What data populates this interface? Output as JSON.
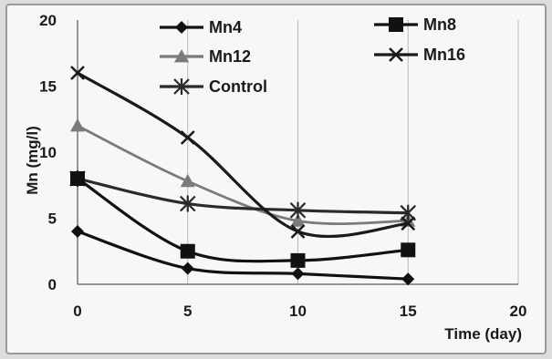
{
  "chart_data": {
    "type": "line",
    "xlabel": "Time (day)",
    "ylabel": "Mn (mg/l)",
    "xlim": [
      0,
      20
    ],
    "ylim": [
      0,
      20
    ],
    "xticks": [
      "0",
      "5",
      "10",
      "15",
      "20"
    ],
    "yticks": [
      "0",
      "5",
      "10",
      "15",
      "20"
    ],
    "grid": "vertical",
    "legend_position": "top",
    "x": [
      0,
      5,
      10,
      15
    ],
    "series": [
      {
        "name": "Mn4",
        "values": [
          4,
          1.2,
          0.8,
          0.4
        ],
        "marker": "diamond",
        "color": "#111111"
      },
      {
        "name": "Mn8",
        "values": [
          8,
          2.5,
          1.8,
          2.6
        ],
        "marker": "square",
        "color": "#111111"
      },
      {
        "name": "Mn12",
        "values": [
          12,
          7.8,
          4.8,
          4.8
        ],
        "marker": "triangle",
        "color": "#7a7a7a"
      },
      {
        "name": "Mn16",
        "values": [
          16,
          11.1,
          4,
          4.6
        ],
        "marker": "x",
        "color": "#1a1a1a"
      },
      {
        "name": "Control",
        "values": [
          8,
          6.1,
          5.6,
          5.4
        ],
        "marker": "star",
        "color": "#2a2a2a"
      }
    ]
  }
}
